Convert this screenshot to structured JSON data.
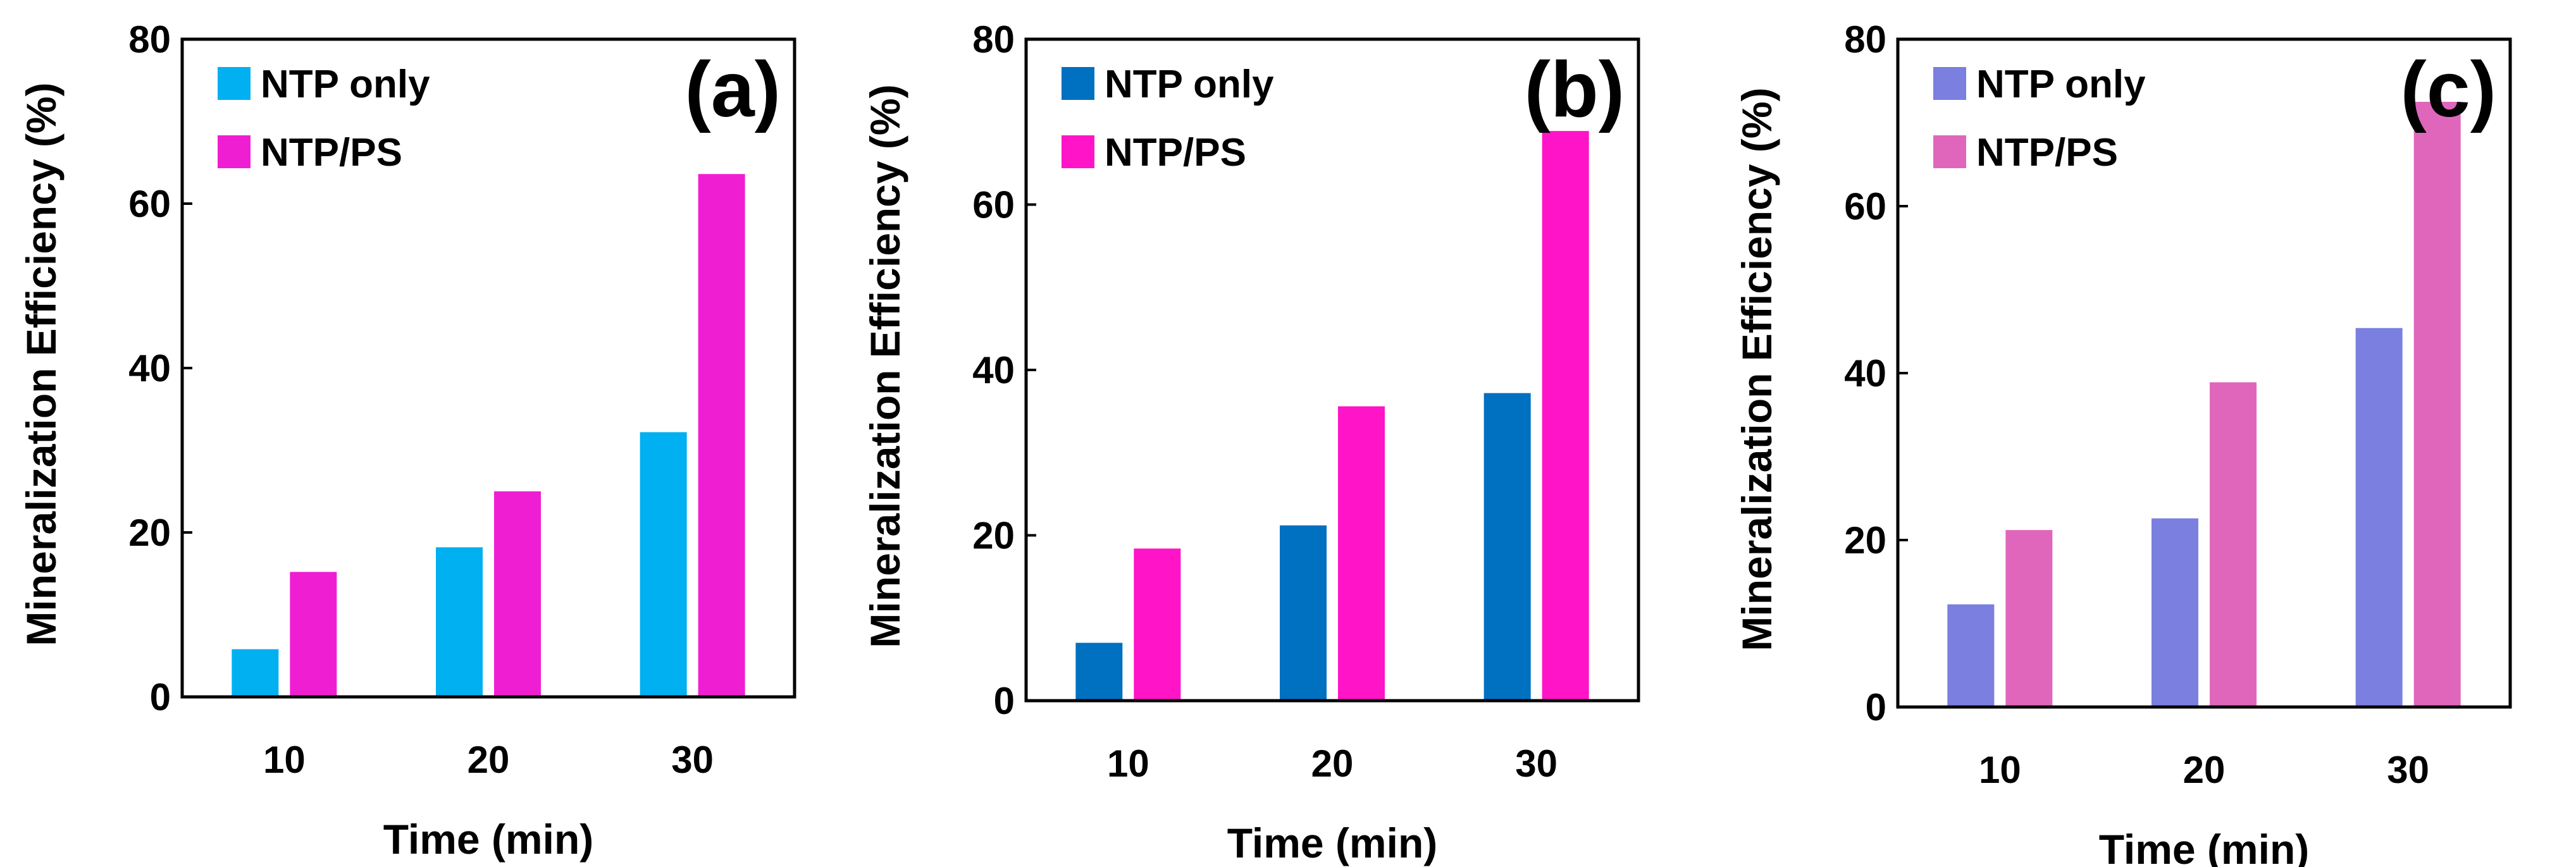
{
  "chart_data": [
    {
      "type": "bar",
      "panel_label": "(a)",
      "categories": [
        "10",
        "20",
        "30"
      ],
      "series": [
        {
          "name": "NTP only",
          "values": [
            5.8,
            18.2,
            32.2
          ],
          "color": "#00B0F0"
        },
        {
          "name": "NTP/PS",
          "values": [
            15.2,
            25.0,
            63.6
          ],
          "color": "#F01ED2"
        }
      ],
      "xlabel": "Time (min)",
      "ylabel": "Mineralization Efficiency (%)",
      "ylim": [
        0,
        80
      ],
      "yticks": [
        "0",
        "20",
        "40",
        "60",
        "80"
      ],
      "legend_position": "top-left"
    },
    {
      "type": "bar",
      "panel_label": "(b)",
      "categories": [
        "10",
        "20",
        "30"
      ],
      "series": [
        {
          "name": "NTP only",
          "values": [
            7.0,
            21.2,
            37.2
          ],
          "color": "#0070C0"
        },
        {
          "name": "NTP/PS",
          "values": [
            18.4,
            35.6,
            68.9
          ],
          "color": "#FF14C8"
        }
      ],
      "xlabel": "Time (min)",
      "ylabel": "Mineralization Efficiency (%)",
      "ylim": [
        0,
        80
      ],
      "yticks": [
        "0",
        "20",
        "40",
        "60",
        "80"
      ],
      "legend_position": "top-left"
    },
    {
      "type": "bar",
      "panel_label": "(c)",
      "categories": [
        "10",
        "20",
        "30"
      ],
      "series": [
        {
          "name": "NTP only",
          "values": [
            12.3,
            22.6,
            45.4
          ],
          "color": "#7A7FE0"
        },
        {
          "name": "NTP/PS",
          "values": [
            21.2,
            38.9,
            72.5
          ],
          "color": "#E066BC"
        }
      ],
      "xlabel": "Time (min)",
      "ylabel": "Mineralization Efficiency (%)",
      "ylim": [
        0,
        80
      ],
      "yticks": [
        "0",
        "20",
        "40",
        "60",
        "80"
      ],
      "legend_position": "top-left"
    }
  ]
}
